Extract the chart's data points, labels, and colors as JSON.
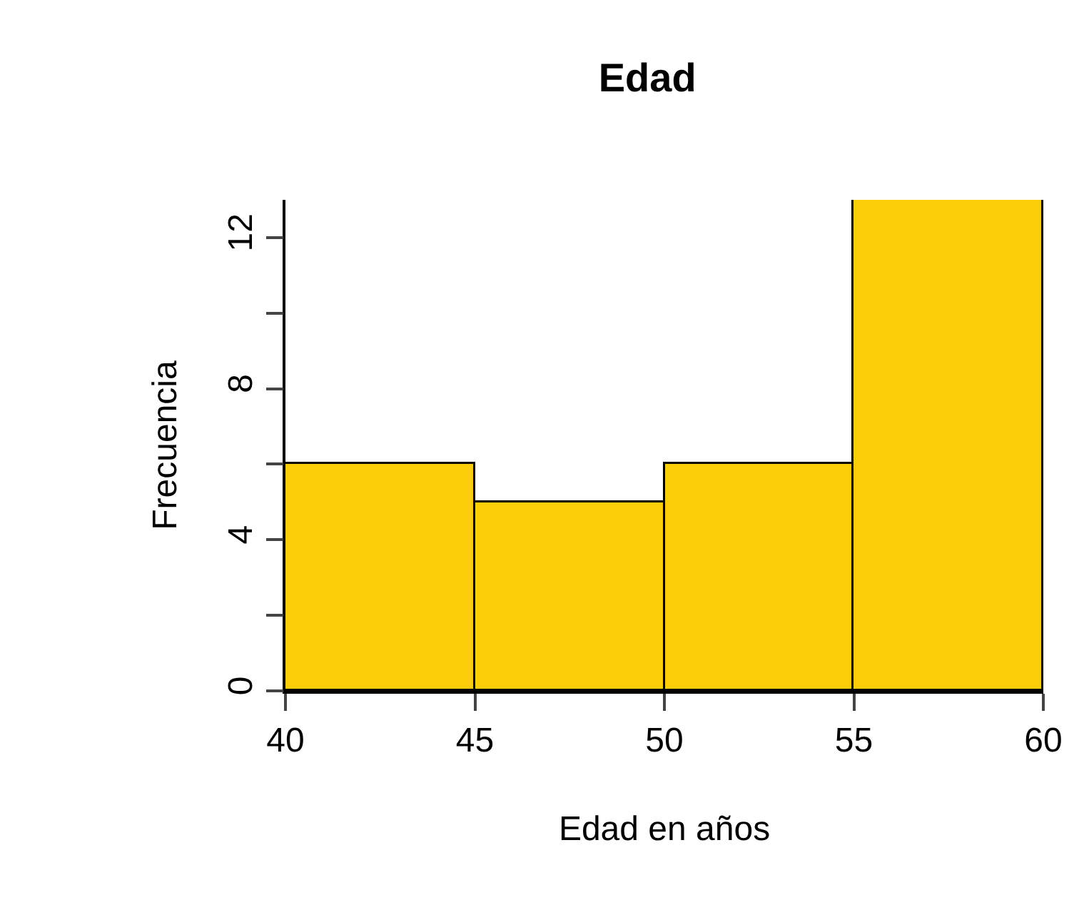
{
  "chart_data": {
    "type": "histogram",
    "title": "Edad",
    "xlabel": "Edad en años",
    "ylabel": "Frecuencia",
    "bins": [
      40,
      45,
      50,
      55,
      60
    ],
    "values": [
      6,
      5,
      6,
      13
    ],
    "color": "#fcce0a",
    "xlim": [
      40,
      60
    ],
    "xticks": [
      40,
      45,
      50,
      55,
      60
    ],
    "ylim": [
      0,
      13
    ],
    "yticks": [
      0,
      {
        "value": 2,
        "label": null
      },
      4,
      {
        "value": 6,
        "label": null
      },
      8,
      {
        "value": 10,
        "label": null
      },
      12
    ]
  }
}
